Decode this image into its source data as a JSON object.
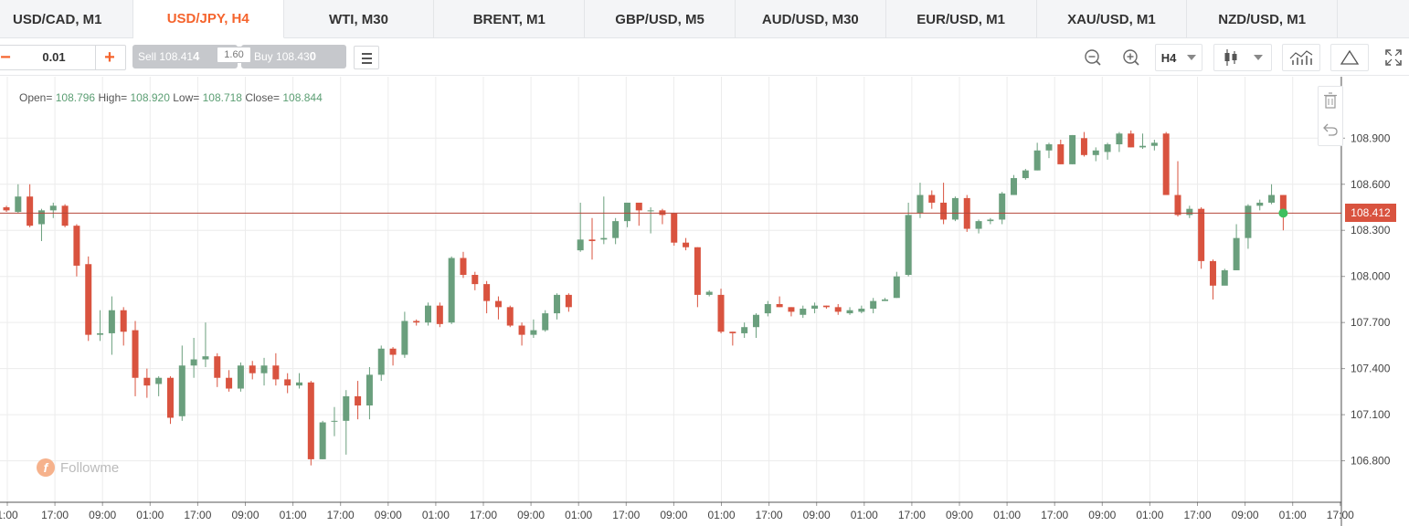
{
  "tabs": [
    {
      "label": "USD/CAD, M1"
    },
    {
      "label": "USD/JPY, H4",
      "active": true
    },
    {
      "label": "WTI, M30"
    },
    {
      "label": "BRENT, M1"
    },
    {
      "label": "GBP/USD, M5"
    },
    {
      "label": "AUD/USD, M30"
    },
    {
      "label": "EUR/USD, M1"
    },
    {
      "label": "XAU/USD, M1"
    },
    {
      "label": "NZD/USD, M1"
    }
  ],
  "toolbar": {
    "lot_minus": "−",
    "lot_value": "0.01",
    "lot_plus": "+",
    "sell_label": "Sell",
    "sell_price_small": "108.41",
    "sell_price_big": "4",
    "spread": "1.60",
    "buy_label": "Buy",
    "buy_price_small": "108.43",
    "buy_price_big": "0",
    "timeframe": "H4",
    "icons": [
      "zoom-out-icon",
      "zoom-in-icon",
      "candlestick-icon",
      "indicators-icon",
      "drawing-triangle-icon",
      "fullscreen-icon"
    ]
  },
  "ohlc": {
    "open_label": "Open=",
    "open": "108.796",
    "high_label": "High=",
    "high": "108.920",
    "low_label": "Low=",
    "low": "108.718",
    "close_label": "Close=",
    "close": "108.844"
  },
  "current_price": "108.412",
  "watermark": "Followme",
  "colors": {
    "up": "#6a9f7d",
    "down": "#d9533f",
    "accent": "#f5642d",
    "grid": "#ececec"
  },
  "chart_data": {
    "type": "candlestick",
    "y_ticks": [
      "108.900",
      "108.600",
      "108.300",
      "108.000",
      "107.700",
      "107.400",
      "107.100",
      "106.800"
    ],
    "y_tick_values": [
      108.9,
      108.6,
      108.3,
      108.0,
      107.7,
      107.4,
      107.1,
      106.8
    ],
    "ylim": [
      106.53,
      109.3
    ],
    "x_ticks": [
      "1:00",
      "17:00",
      "09:00",
      "01:00",
      "17:00",
      "09:00",
      "01:00",
      "17:00",
      "09:00",
      "01:00",
      "17:00",
      "09:00",
      "01:00",
      "17:00",
      "09:00",
      "01:00",
      "17:00",
      "09:00",
      "01:00",
      "17:00",
      "09:00",
      "01:00",
      "17:00",
      "09:00",
      "01:00",
      "17:00",
      "09:00",
      "01:00",
      "17:00"
    ],
    "current_price": 108.412,
    "candles": [
      [
        108.45,
        108.43,
        108.42,
        108.46
      ],
      [
        108.42,
        108.52,
        108.41,
        108.6
      ],
      [
        108.52,
        108.33,
        108.32,
        108.6
      ],
      [
        108.34,
        108.43,
        108.23,
        108.44
      ],
      [
        108.43,
        108.46,
        108.38,
        108.48
      ],
      [
        108.46,
        108.33,
        108.32,
        108.47
      ],
      [
        108.33,
        108.07,
        108.0,
        108.34
      ],
      [
        108.08,
        107.62,
        107.58,
        108.13
      ],
      [
        107.62,
        107.63,
        107.58,
        107.78
      ],
      [
        107.63,
        107.78,
        107.49,
        107.87
      ],
      [
        107.78,
        107.64,
        107.55,
        107.8
      ],
      [
        107.65,
        107.34,
        107.22,
        107.71
      ],
      [
        107.34,
        107.29,
        107.21,
        107.4
      ],
      [
        107.3,
        107.34,
        107.22,
        107.35
      ],
      [
        107.34,
        107.08,
        107.04,
        107.35
      ],
      [
        107.09,
        107.42,
        107.06,
        107.55
      ],
      [
        107.42,
        107.46,
        107.34,
        107.6
      ],
      [
        107.46,
        107.48,
        107.41,
        107.7
      ],
      [
        107.48,
        107.34,
        107.28,
        107.5
      ],
      [
        107.34,
        107.27,
        107.25,
        107.39
      ],
      [
        107.27,
        107.42,
        107.25,
        107.44
      ],
      [
        107.42,
        107.37,
        107.33,
        107.45
      ],
      [
        107.37,
        107.42,
        107.29,
        107.47
      ],
      [
        107.42,
        107.33,
        107.29,
        107.5
      ],
      [
        107.33,
        107.29,
        107.24,
        107.37
      ],
      [
        107.29,
        107.31,
        107.27,
        107.37
      ],
      [
        107.31,
        106.81,
        106.77,
        107.32
      ],
      [
        106.81,
        107.05,
        106.81,
        107.06
      ],
      [
        107.06,
        107.06,
        106.96,
        107.15
      ],
      [
        107.06,
        107.22,
        106.84,
        107.26
      ],
      [
        107.22,
        107.16,
        107.07,
        107.32
      ],
      [
        107.16,
        107.36,
        107.07,
        107.41
      ],
      [
        107.36,
        107.53,
        107.32,
        107.55
      ],
      [
        107.53,
        107.49,
        107.42,
        107.54
      ],
      [
        107.49,
        107.71,
        107.47,
        107.77
      ],
      [
        107.71,
        107.7,
        107.68,
        107.72
      ],
      [
        107.7,
        107.81,
        107.68,
        107.83
      ],
      [
        107.81,
        107.69,
        107.67,
        107.83
      ],
      [
        107.7,
        108.12,
        107.69,
        108.13
      ],
      [
        108.12,
        108.01,
        107.99,
        108.16
      ],
      [
        108.01,
        107.95,
        107.91,
        108.03
      ],
      [
        107.95,
        107.84,
        107.76,
        107.97
      ],
      [
        107.84,
        107.8,
        107.72,
        107.87
      ],
      [
        107.8,
        107.68,
        107.67,
        107.81
      ],
      [
        107.68,
        107.62,
        107.55,
        107.7
      ],
      [
        107.62,
        107.65,
        107.6,
        107.72
      ],
      [
        107.65,
        107.76,
        107.64,
        107.78
      ],
      [
        107.76,
        107.88,
        107.72,
        107.89
      ],
      [
        107.88,
        107.8,
        107.77,
        107.89
      ],
      [
        108.17,
        108.24,
        108.16,
        108.48
      ],
      [
        108.24,
        108.23,
        108.11,
        108.38
      ],
      [
        108.24,
        108.25,
        108.21,
        108.52
      ],
      [
        108.25,
        108.36,
        108.21,
        108.38
      ],
      [
        108.36,
        108.48,
        108.32,
        108.48
      ],
      [
        108.48,
        108.43,
        108.33,
        108.46
      ],
      [
        108.43,
        108.43,
        108.28,
        108.45
      ],
      [
        108.43,
        108.4,
        108.34,
        108.44
      ],
      [
        108.41,
        108.22,
        108.2,
        108.41
      ],
      [
        108.22,
        108.19,
        108.17,
        108.25
      ],
      [
        108.19,
        107.88,
        107.8,
        108.19
      ],
      [
        107.88,
        107.9,
        107.87,
        107.91
      ],
      [
        107.88,
        107.64,
        107.63,
        107.92
      ],
      [
        107.64,
        107.63,
        107.55,
        107.64
      ],
      [
        107.63,
        107.67,
        107.6,
        107.7
      ],
      [
        107.67,
        107.75,
        107.6,
        107.76
      ],
      [
        107.76,
        107.82,
        107.74,
        107.84
      ],
      [
        107.82,
        107.8,
        107.8,
        107.87
      ],
      [
        107.8,
        107.77,
        107.74,
        107.8
      ],
      [
        107.75,
        107.79,
        107.73,
        107.81
      ],
      [
        107.79,
        107.81,
        107.76,
        107.83
      ],
      [
        107.81,
        107.8,
        107.79,
        107.81
      ],
      [
        107.8,
        107.77,
        107.75,
        107.82
      ],
      [
        107.76,
        107.78,
        107.75,
        107.8
      ],
      [
        107.77,
        107.79,
        107.76,
        107.81
      ],
      [
        107.79,
        107.84,
        107.76,
        107.86
      ],
      [
        107.84,
        107.85,
        107.84,
        107.86
      ],
      [
        107.86,
        108.0,
        107.86,
        108.03
      ],
      [
        108.01,
        108.4,
        108.0,
        108.48
      ],
      [
        108.41,
        108.53,
        108.38,
        108.61
      ],
      [
        108.53,
        108.48,
        108.44,
        108.56
      ],
      [
        108.48,
        108.37,
        108.34,
        108.61
      ],
      [
        108.37,
        108.51,
        108.36,
        108.52
      ],
      [
        108.51,
        108.31,
        108.29,
        108.53
      ],
      [
        108.31,
        108.36,
        108.28,
        108.37
      ],
      [
        108.36,
        108.37,
        108.34,
        108.38
      ],
      [
        108.37,
        108.54,
        108.34,
        108.55
      ],
      [
        108.53,
        108.64,
        108.53,
        108.66
      ],
      [
        108.64,
        108.69,
        108.63,
        108.7
      ],
      [
        108.69,
        108.82,
        108.69,
        108.87
      ],
      [
        108.82,
        108.86,
        108.77,
        108.87
      ],
      [
        108.86,
        108.73,
        108.73,
        108.89
      ],
      [
        108.73,
        108.92,
        108.73,
        108.92
      ],
      [
        108.9,
        108.79,
        108.78,
        108.94
      ],
      [
        108.79,
        108.82,
        108.75,
        108.84
      ],
      [
        108.81,
        108.86,
        108.76,
        108.87
      ],
      [
        108.86,
        108.93,
        108.81,
        108.94
      ],
      [
        108.93,
        108.84,
        108.84,
        108.95
      ],
      [
        108.84,
        108.85,
        108.83,
        108.93
      ],
      [
        108.85,
        108.87,
        108.82,
        108.89
      ],
      [
        108.93,
        108.53,
        108.53,
        108.94
      ],
      [
        108.53,
        108.4,
        108.39,
        108.75
      ],
      [
        108.4,
        108.44,
        108.38,
        108.46
      ],
      [
        108.44,
        108.1,
        108.05,
        108.45
      ],
      [
        108.1,
        107.94,
        107.85,
        108.11
      ],
      [
        107.94,
        108.04,
        107.95,
        108.05
      ],
      [
        108.04,
        108.25,
        108.04,
        108.34
      ],
      [
        108.25,
        108.46,
        108.18,
        108.47
      ],
      [
        108.46,
        108.48,
        108.43,
        108.5
      ],
      [
        108.48,
        108.53,
        108.47,
        108.6
      ],
      [
        108.53,
        108.41,
        108.3,
        108.53
      ]
    ]
  }
}
